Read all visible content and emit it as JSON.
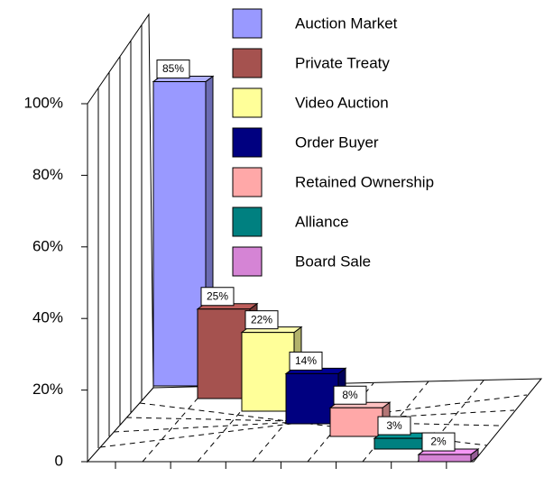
{
  "chart_data": {
    "type": "bar3d",
    "ylim": [
      0,
      100
    ],
    "yticks": [
      0,
      {
        "value": 20,
        "label": "20%"
      },
      {
        "value": 40,
        "label": "40%"
      },
      {
        "value": 60,
        "label": "60%"
      },
      {
        "value": 80,
        "label": "80%"
      },
      {
        "value": 100,
        "label": "100%"
      }
    ],
    "legend": "top-right",
    "series": [
      {
        "name": "Auction Market",
        "color": "#9999ff",
        "values": [
          85
        ],
        "value_labels": [
          "85%"
        ]
      },
      {
        "name": "Private Treaty",
        "color": "#a5524f",
        "values": [
          25
        ],
        "value_labels": [
          "25%"
        ]
      },
      {
        "name": "Video Auction",
        "color": "#ffff99",
        "values": [
          22
        ],
        "value_labels": [
          "22%"
        ]
      },
      {
        "name": "Order Buyer",
        "color": "#000080",
        "values": [
          14
        ],
        "value_labels": [
          "14%"
        ]
      },
      {
        "name": "Retained Ownership",
        "color": "#ffa8a8",
        "values": [
          8
        ],
        "value_labels": [
          "8%"
        ]
      },
      {
        "name": "Alliance",
        "color": "#008080",
        "values": [
          3
        ],
        "value_labels": [
          "3%"
        ]
      },
      {
        "name": "Board Sale",
        "color": "#d584d5",
        "values": [
          2
        ],
        "value_labels": [
          "2%"
        ]
      }
    ]
  }
}
